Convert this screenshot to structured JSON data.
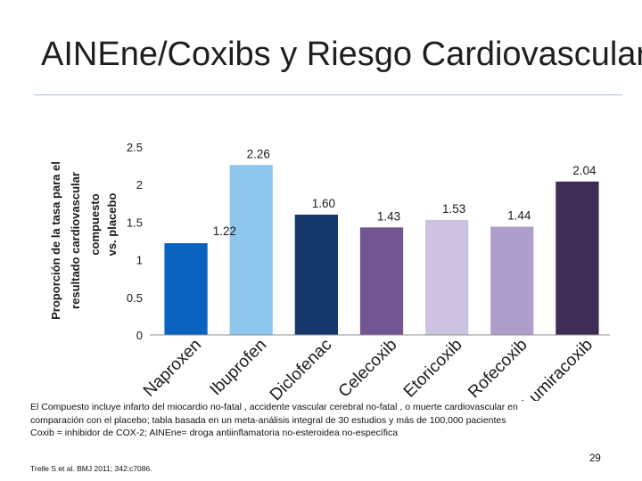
{
  "slide": {
    "title": "AINEne/Coxibs y Riesgo Cardiovascular",
    "footnote_line1": "El Compuesto incluye infarto del miocardio no-fatal , accidente vascular cerebral no-fatal , o muerte cardiovascular en",
    "footnote_line2": "comparación con el placebo; tabla basada en un meta-análisis integral de 30 estudios y más de 100,000 pacientes",
    "footnote_line3": "Coxib = inhibidor de COX-2; AINEne= droga antiinflamatoria no-esteroidea no-específica",
    "reference": "Trelle S et al. BMJ 2011; 342:c7086.",
    "page_number": "29"
  },
  "chart_data": {
    "type": "bar",
    "title": "",
    "ylabel_lines": [
      "Proporción de la tasa para el",
      "resultado cardiovascular",
      "compuesto",
      "vs. placebo"
    ],
    "xlabel": "",
    "ylim": [
      0,
      2.5
    ],
    "yticks": [
      {
        "value": 0,
        "label": "0"
      },
      {
        "value": 0.5,
        "label": "0.5"
      },
      {
        "value": 1,
        "label": "1"
      },
      {
        "value": 1.5,
        "label": "1.5"
      },
      {
        "value": 2,
        "label": "2"
      },
      {
        "value": 2.5,
        "label": "2.5"
      }
    ],
    "categories": [
      "Naproxen",
      "Ibuprofen",
      "Diclofenac",
      "Celecoxib",
      "Etoricoxib",
      "Rofecoxib",
      "Lumiracoxib"
    ],
    "values": [
      1.22,
      2.26,
      1.6,
      1.43,
      1.53,
      1.44,
      2.04
    ],
    "value_labels": [
      "1.22",
      "2.26",
      "1.60",
      "1.43",
      "1.53",
      "1.44",
      "2.04"
    ],
    "colors": [
      "#0b63c1",
      "#8ec6ee",
      "#16376a",
      "#725691",
      "#cdc3e0",
      "#ad9fc9",
      "#3d2d55"
    ],
    "grid": false,
    "legend": "none"
  }
}
